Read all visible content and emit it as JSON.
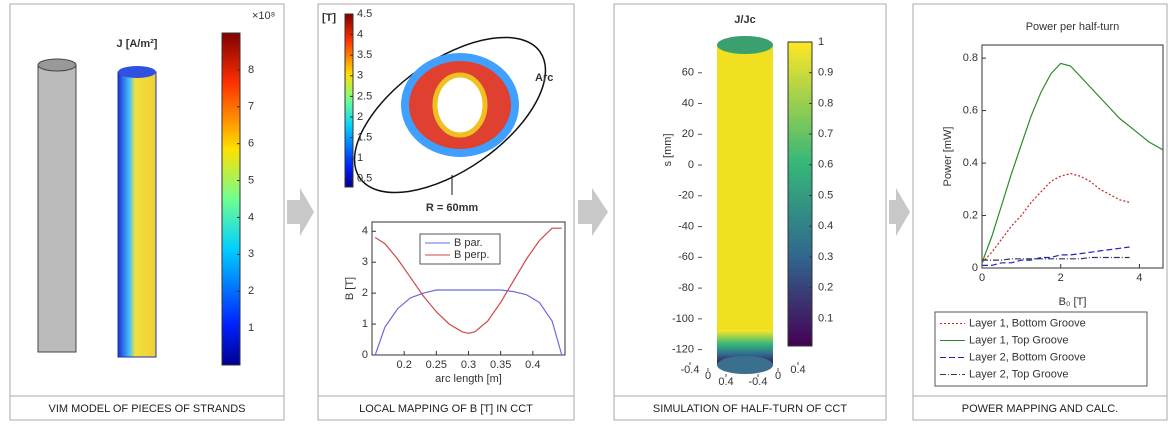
{
  "panels": [
    {
      "caption": "VIM MODEL OF PIECES OF STRANDS",
      "title": "J [A/m²]",
      "colorbar": {
        "exponent": "×10⁸",
        "lim": [
          0,
          9
        ],
        "ticks": [
          1,
          2,
          3,
          4,
          5,
          6,
          7,
          8
        ]
      }
    },
    {
      "caption": "LOCAL MAPPING OF B [T] IN CCT",
      "unit": "[T]",
      "arc_label": "Arc",
      "radius_label": "R = 60mm",
      "colorbar": {
        "lim": [
          0.3,
          4.5
        ],
        "ticks": [
          0.5,
          1,
          1.5,
          2,
          2.5,
          3,
          3.5,
          4,
          4.5
        ]
      }
    },
    {
      "caption": "SIMULATION OF HALF-TURN OF CCT",
      "title": "J/Jc",
      "axis_label": "s [mm]",
      "zticks": [
        60,
        40,
        20,
        0,
        -20,
        -40,
        -60,
        -80,
        -100,
        -120
      ],
      "zlim": [
        80,
        -130
      ],
      "xticks": [
        -0.4,
        0,
        0.4
      ],
      "yticks": [
        -0.4,
        0,
        0.4
      ],
      "colorbar": {
        "lim": [
          0.01,
          1
        ],
        "ticks": [
          0.1,
          0.2,
          0.3,
          0.4,
          0.5,
          0.6,
          0.7,
          0.8,
          0.9,
          1
        ]
      }
    },
    {
      "caption": "POWER MAPPING AND CALC."
    }
  ],
  "chart_data": [
    {
      "type": "line",
      "x_label": "arc length [m]",
      "y_label": "B [T]",
      "xlim": [
        0.15,
        0.45
      ],
      "ylim": [
        0,
        4.3
      ],
      "xticks": [
        0.2,
        0.25,
        0.3,
        0.35,
        0.4
      ],
      "yticks": [
        0,
        1,
        2,
        3,
        4
      ],
      "legend": "upper center",
      "x": [
        0.155,
        0.17,
        0.19,
        0.21,
        0.23,
        0.25,
        0.27,
        0.29,
        0.3,
        0.31,
        0.33,
        0.35,
        0.37,
        0.39,
        0.41,
        0.43,
        0.445
      ],
      "series": [
        {
          "name": "B par.",
          "color": "#6a6ae0",
          "dash": "solid",
          "values": [
            0,
            0.9,
            1.5,
            1.85,
            2.0,
            2.1,
            2.1,
            2.1,
            2.1,
            2.1,
            2.1,
            2.1,
            2.05,
            1.95,
            1.7,
            1.1,
            0
          ]
        },
        {
          "name": "B perp.",
          "color": "#d04848",
          "dash": "solid",
          "values": [
            3.8,
            3.6,
            3.1,
            2.5,
            1.9,
            1.4,
            1.0,
            0.75,
            0.7,
            0.75,
            1.1,
            1.7,
            2.4,
            3.1,
            3.7,
            4.1,
            4.1
          ]
        }
      ]
    },
    {
      "type": "line",
      "title": "Power per half-turn",
      "x_label": "B₀ [T]",
      "y_label": "Power [mW]",
      "xlim": [
        0,
        4.6
      ],
      "ylim": [
        0,
        0.85
      ],
      "xticks": [
        0,
        2,
        4
      ],
      "yticks": [
        0,
        0.2,
        0.4,
        0.6,
        0.8
      ],
      "legend": "below",
      "x": [
        0,
        0.25,
        0.5,
        0.75,
        1,
        1.25,
        1.5,
        1.75,
        2,
        2.25,
        2.5,
        2.75,
        3,
        3.25,
        3.5,
        3.75,
        4,
        4.25,
        4.6
      ],
      "series": [
        {
          "name": "Layer 1, Bottom Groove",
          "color": "#d02020",
          "dash": "dot",
          "values": [
            0.02,
            0.06,
            0.11,
            0.16,
            0.2,
            0.25,
            0.29,
            0.33,
            0.35,
            0.36,
            0.35,
            0.33,
            0.3,
            0.28,
            0.26,
            0.25,
            null,
            null,
            null
          ]
        },
        {
          "name": "Layer 1, Top Groove",
          "color": "#2a8a2a",
          "dash": "solid",
          "values": [
            0.02,
            0.12,
            0.24,
            0.36,
            0.47,
            0.58,
            0.67,
            0.74,
            0.78,
            0.77,
            0.73,
            0.69,
            0.65,
            0.61,
            0.57,
            0.54,
            0.51,
            0.48,
            0.45
          ]
        },
        {
          "name": "Layer 2, Bottom Groove",
          "color": "#2020c0",
          "dash": "dash",
          "values": [
            0.01,
            0.01,
            0.02,
            0.02,
            0.03,
            0.03,
            0.04,
            0.04,
            0.05,
            0.05,
            0.055,
            0.06,
            0.065,
            0.07,
            0.075,
            0.08,
            null,
            null,
            null
          ]
        },
        {
          "name": "Layer 2, Top Groove",
          "color": "#333355",
          "dash": "dashdot",
          "values": [
            0.03,
            0.03,
            0.03,
            0.035,
            0.035,
            0.035,
            0.035,
            0.035,
            0.035,
            0.035,
            0.035,
            0.04,
            0.04,
            0.04,
            0.04,
            0.04,
            null,
            null,
            null
          ]
        }
      ]
    }
  ]
}
